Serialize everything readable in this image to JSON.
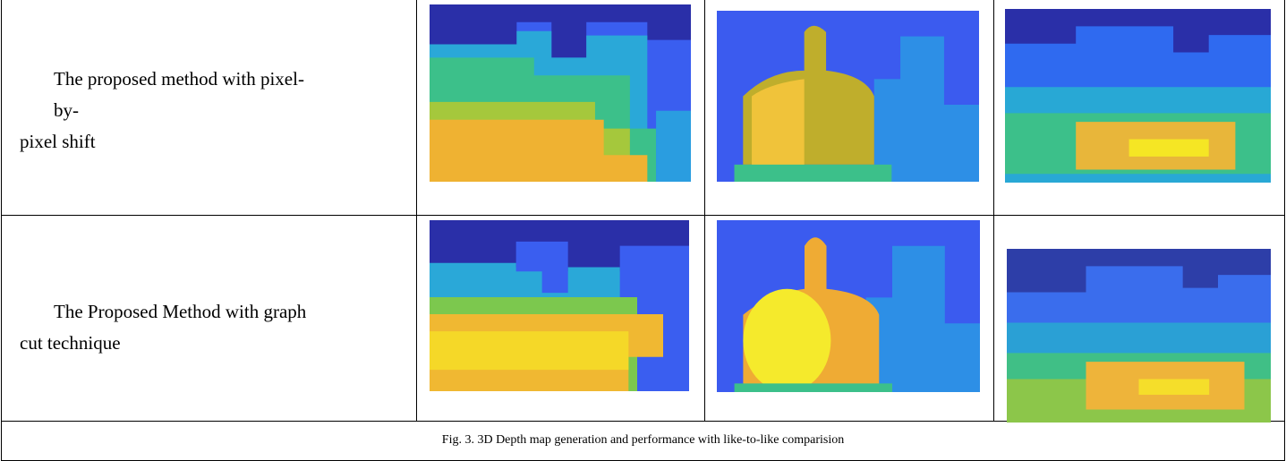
{
  "table": {
    "rows": [
      {
        "lines": [
          "The proposed method with pixel-",
          "by-",
          "pixel shift"
        ]
      },
      {
        "lines": [
          "The Proposed Method with graph",
          "cut technique"
        ]
      }
    ],
    "caption": "Fig. 3. 3D Depth map generation and performance with like-to-like comparision"
  }
}
